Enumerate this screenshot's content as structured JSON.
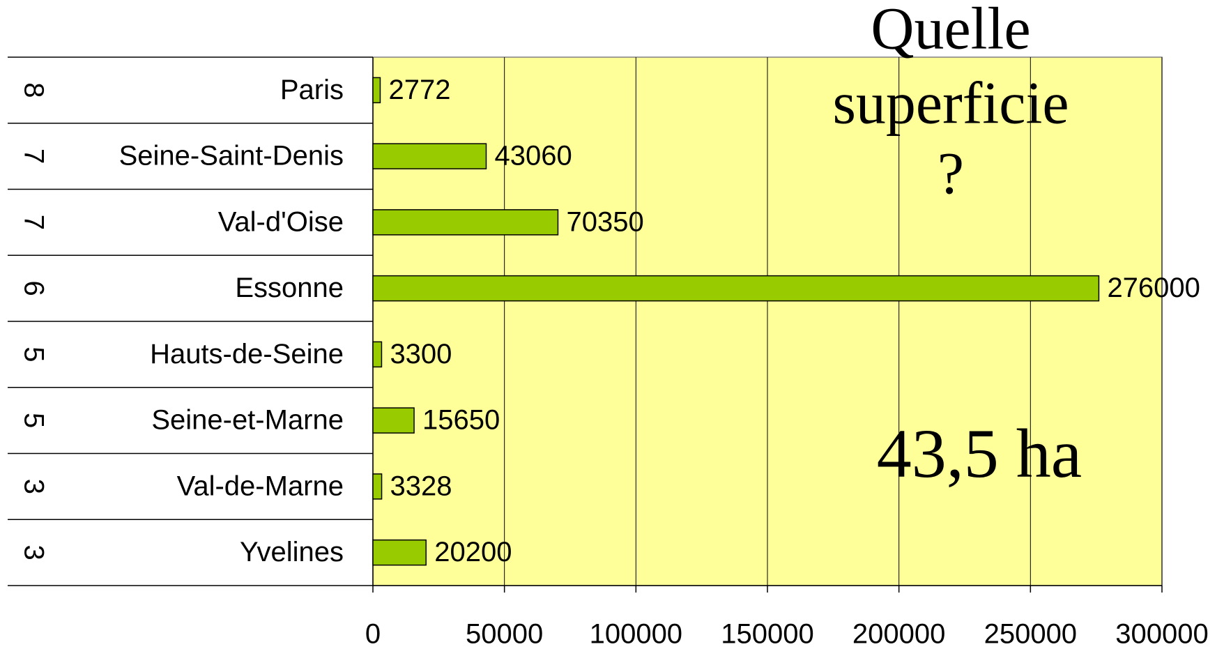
{
  "chart_data": {
    "type": "barh",
    "categories": [
      "Paris",
      "Seine-Saint-Denis",
      "Val-d'Oise",
      "Essonne",
      "Hauts-de-Seine",
      "Seine-et-Marne",
      "Val-de-Marne",
      "Yvelines"
    ],
    "groups": [
      "8",
      "7",
      "7",
      "6",
      "5",
      "5",
      "3",
      "3"
    ],
    "values": [
      2772,
      43060,
      70350,
      276000,
      3300,
      15650,
      3328,
      20200
    ],
    "color": "#99cc00",
    "background": "#ffff99",
    "xlim": [
      0,
      300000
    ],
    "xticks": [
      0,
      50000,
      100000,
      150000,
      200000,
      250000,
      300000
    ],
    "grid": true,
    "annotations": {
      "question": [
        "Quelle",
        "superficie",
        "?"
      ],
      "answer": "43,5 ha"
    }
  }
}
